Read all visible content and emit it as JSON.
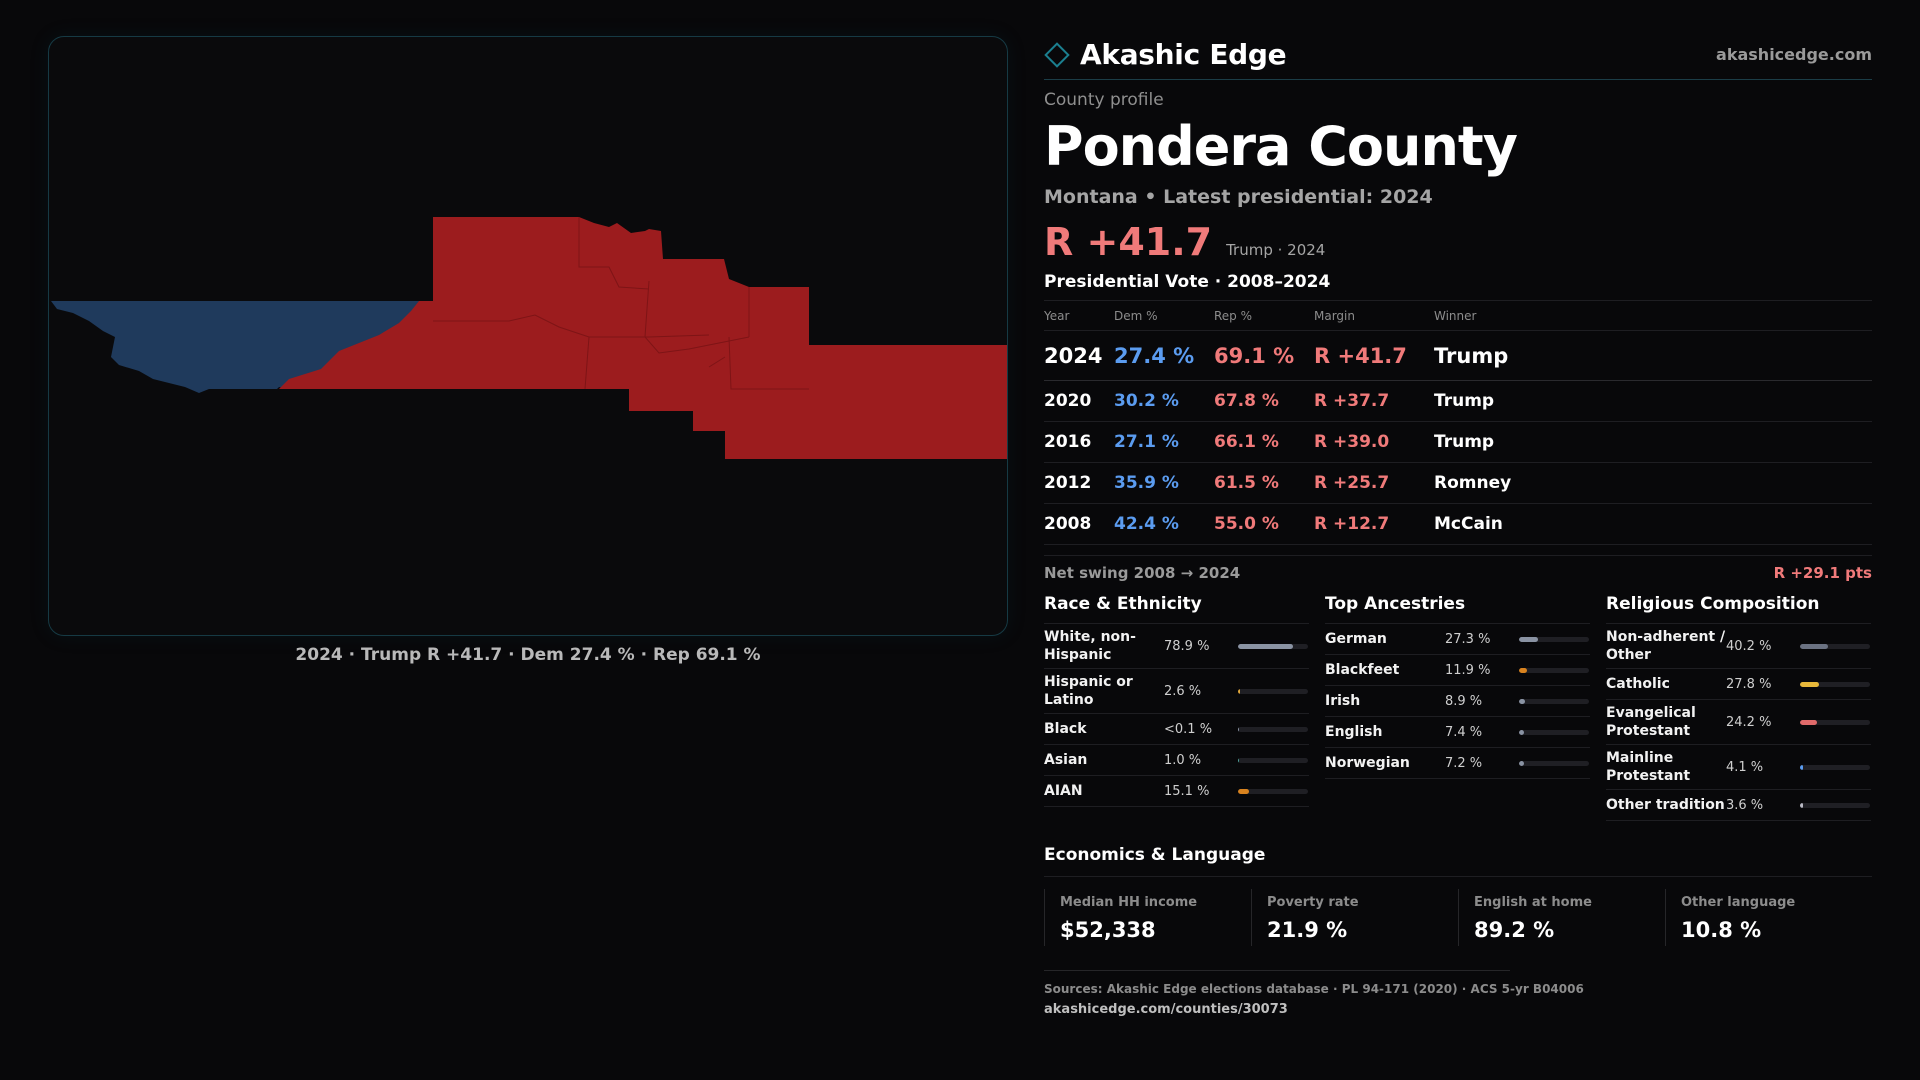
{
  "brand": {
    "name": "Akashic Edge",
    "url": "akashicedge.com"
  },
  "colors": {
    "dem": "#5b9cf0",
    "rep": "#f07a7a",
    "map_dem": "#1f3a5c",
    "map_rep": "#9c1c1e",
    "accent": "#1b7f8f"
  },
  "map": {
    "caption": "2024 · Trump R +41.7 · Dem 27.4 % · Rep 69.1 %"
  },
  "profile": {
    "kicker": "County profile",
    "title": "Pondera County",
    "subtitle": "Montana • Latest presidential: 2024",
    "margin": "R +41.7",
    "margin_note": "Trump · 2024"
  },
  "votes": {
    "title": "Presidential Vote · 2008–2024",
    "headers": [
      "Year",
      "Dem %",
      "Rep %",
      "Margin",
      "Winner"
    ],
    "rows": [
      {
        "year": "2024",
        "dem": "27.4 %",
        "rep": "69.1 %",
        "margin": "R +41.7",
        "winner": "Trump"
      },
      {
        "year": "2020",
        "dem": "30.2 %",
        "rep": "67.8 %",
        "margin": "R +37.7",
        "winner": "Trump"
      },
      {
        "year": "2016",
        "dem": "27.1 %",
        "rep": "66.1 %",
        "margin": "R +39.0",
        "winner": "Trump"
      },
      {
        "year": "2012",
        "dem": "35.9 %",
        "rep": "61.5 %",
        "margin": "R +25.7",
        "winner": "Romney"
      },
      {
        "year": "2008",
        "dem": "42.4 %",
        "rep": "55.0 %",
        "margin": "R +12.7",
        "winner": "McCain"
      }
    ],
    "swing_label": "Net swing 2008 → 2024",
    "swing_value": "R +29.1 pts"
  },
  "race": {
    "title": "Race & Ethnicity",
    "items": [
      {
        "label": "White, non-Hispanic",
        "value": "78.9 %",
        "pct": 78.9,
        "color": "#8a93a3"
      },
      {
        "label": "Hispanic or Latino",
        "value": "2.6 %",
        "pct": 2.6,
        "color": "#e0a63a"
      },
      {
        "label": "Black",
        "value": "<0.1 %",
        "pct": 0.05,
        "color": "#8a93a3"
      },
      {
        "label": "Asian",
        "value": "1.0 %",
        "pct": 1.0,
        "color": "#4fa39a"
      },
      {
        "label": "AIAN",
        "value": "15.1 %",
        "pct": 15.1,
        "color": "#d9831f"
      }
    ]
  },
  "ancestry": {
    "title": "Top Ancestries",
    "items": [
      {
        "label": "German",
        "value": "27.3 %",
        "pct": 27.3,
        "color": "#8a93a3"
      },
      {
        "label": "Blackfeet",
        "value": "11.9 %",
        "pct": 11.9,
        "color": "#d9831f"
      },
      {
        "label": "Irish",
        "value": "8.9 %",
        "pct": 8.9,
        "color": "#8a93a3"
      },
      {
        "label": "English",
        "value": "7.4 %",
        "pct": 7.4,
        "color": "#8a93a3"
      },
      {
        "label": "Norwegian",
        "value": "7.2 %",
        "pct": 7.2,
        "color": "#8a93a3"
      }
    ]
  },
  "religion": {
    "title": "Religious Composition",
    "items": [
      {
        "label": "Non-adherent / Other",
        "value": "40.2 %",
        "pct": 40.2,
        "color": "#6b7282"
      },
      {
        "label": "Catholic",
        "value": "27.8 %",
        "pct": 27.8,
        "color": "#e8b83a"
      },
      {
        "label": "Evangelical Protestant",
        "value": "24.2 %",
        "pct": 24.2,
        "color": "#e06a6a"
      },
      {
        "label": "Mainline Protestant",
        "value": "4.1 %",
        "pct": 4.1,
        "color": "#5b9cf0"
      },
      {
        "label": "Other tradition",
        "value": "3.6 %",
        "pct": 3.6,
        "color": "#b9b9c4"
      }
    ]
  },
  "economics": {
    "title": "Economics & Language",
    "items": [
      {
        "label": "Median HH income",
        "value": "$52,338"
      },
      {
        "label": "Poverty rate",
        "value": "21.9 %"
      },
      {
        "label": "English at home",
        "value": "89.2 %"
      },
      {
        "label": "Other language",
        "value": "10.8 %"
      }
    ]
  },
  "footer": {
    "sources": "Sources: Akashic Edge elections database · PL 94-171 (2020) · ACS 5-yr B04006",
    "url": "akashicedge.com/counties/30073"
  }
}
